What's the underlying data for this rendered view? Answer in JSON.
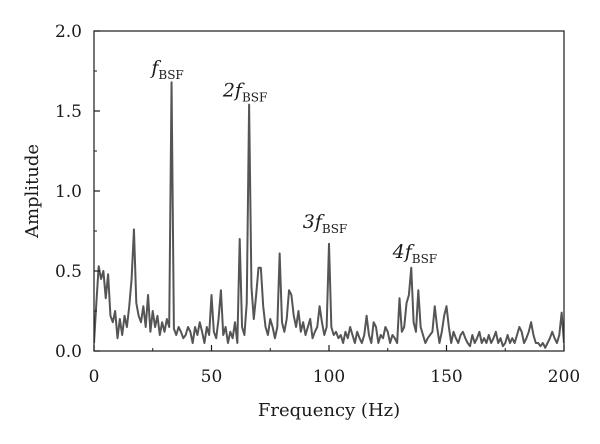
{
  "chart_data": {
    "type": "line",
    "title": "",
    "xlabel": "Frequency (Hz)",
    "ylabel": "Amplitude",
    "xlim": [
      0,
      200
    ],
    "ylim": [
      0,
      2.0
    ],
    "xticks": [
      0,
      50,
      100,
      150,
      200
    ],
    "yticks": [
      0.0,
      0.5,
      1.0,
      1.5,
      2.0
    ],
    "xtick_labels": [
      "0",
      "50",
      "100",
      "150",
      "200"
    ],
    "ytick_labels": [
      "0.0",
      "0.5",
      "1.0",
      "1.5",
      "2.0"
    ],
    "grid": false,
    "line_color": "#555555",
    "series": [
      {
        "x": [
          0,
          1,
          2,
          3,
          4,
          5,
          6,
          7,
          8,
          9,
          10,
          11,
          12,
          13,
          14,
          15,
          16,
          17,
          18,
          19,
          20,
          21,
          22,
          23,
          24,
          25,
          26,
          27,
          28,
          29,
          30,
          31,
          32,
          33,
          34,
          35,
          36,
          37,
          38,
          39,
          40,
          41,
          42,
          43,
          44,
          45,
          46,
          47,
          48,
          49,
          50,
          51,
          52,
          53,
          54,
          55,
          56,
          57,
          58,
          59,
          60,
          61,
          62,
          63,
          64,
          65,
          66,
          67,
          68,
          69,
          70,
          71,
          72,
          73,
          74,
          75,
          76,
          77,
          78,
          79,
          80,
          81,
          82,
          83,
          84,
          85,
          86,
          87,
          88,
          89,
          90,
          91,
          92,
          93,
          94,
          95,
          96,
          97,
          98,
          99,
          100,
          101,
          102,
          103,
          104,
          105,
          106,
          107,
          108,
          109,
          110,
          111,
          112,
          113,
          114,
          115,
          116,
          117,
          118,
          119,
          120,
          121,
          122,
          123,
          124,
          125,
          126,
          127,
          128,
          129,
          130,
          131,
          132,
          133,
          134,
          135,
          136,
          137,
          138,
          139,
          140,
          141,
          142,
          143,
          144,
          145,
          146,
          147,
          148,
          149,
          150,
          151,
          152,
          153,
          154,
          155,
          156,
          157,
          158,
          159,
          160,
          161,
          162,
          163,
          164,
          165,
          166,
          167,
          168,
          169,
          170,
          171,
          172,
          173,
          174,
          175,
          176,
          177,
          178,
          179,
          180,
          181,
          182,
          183,
          184,
          185,
          186,
          187,
          188,
          189,
          190,
          191,
          192,
          193,
          194,
          195,
          196,
          197,
          198,
          199,
          200
        ],
        "values": [
          0.05,
          0.3,
          0.53,
          0.45,
          0.5,
          0.33,
          0.48,
          0.22,
          0.18,
          0.25,
          0.08,
          0.2,
          0.1,
          0.22,
          0.15,
          0.28,
          0.45,
          0.76,
          0.3,
          0.22,
          0.18,
          0.28,
          0.15,
          0.35,
          0.12,
          0.25,
          0.15,
          0.22,
          0.1,
          0.18,
          0.12,
          0.2,
          0.15,
          1.68,
          0.14,
          0.1,
          0.15,
          0.12,
          0.08,
          0.1,
          0.15,
          0.12,
          0.05,
          0.15,
          0.1,
          0.18,
          0.12,
          0.05,
          0.15,
          0.1,
          0.35,
          0.12,
          0.08,
          0.2,
          0.38,
          0.1,
          0.15,
          0.05,
          0.12,
          0.08,
          0.18,
          0.05,
          0.7,
          0.15,
          0.1,
          0.3,
          1.54,
          0.4,
          0.2,
          0.35,
          0.52,
          0.52,
          0.28,
          0.15,
          0.1,
          0.2,
          0.15,
          0.08,
          0.15,
          0.61,
          0.18,
          0.12,
          0.2,
          0.38,
          0.35,
          0.22,
          0.15,
          0.25,
          0.12,
          0.18,
          0.1,
          0.15,
          0.2,
          0.08,
          0.12,
          0.15,
          0.28,
          0.18,
          0.1,
          0.15,
          0.67,
          0.15,
          0.1,
          0.12,
          0.08,
          0.1,
          0.05,
          0.12,
          0.08,
          0.15,
          0.1,
          0.05,
          0.12,
          0.08,
          0.05,
          0.1,
          0.22,
          0.1,
          0.05,
          0.18,
          0.15,
          0.05,
          0.1,
          0.08,
          0.15,
          0.12,
          0.05,
          0.1,
          0.08,
          0.05,
          0.33,
          0.12,
          0.15,
          0.3,
          0.35,
          0.52,
          0.18,
          0.12,
          0.38,
          0.15,
          0.1,
          0.05,
          0.08,
          0.1,
          0.12,
          0.28,
          0.15,
          0.05,
          0.12,
          0.22,
          0.28,
          0.15,
          0.05,
          0.12,
          0.08,
          0.05,
          0.1,
          0.12,
          0.08,
          0.05,
          0.03,
          0.1,
          0.05,
          0.08,
          0.12,
          0.05,
          0.08,
          0.05,
          0.1,
          0.05,
          0.08,
          0.12,
          0.05,
          0.08,
          0.03,
          0.05,
          0.1,
          0.05,
          0.08,
          0.05,
          0.1,
          0.15,
          0.12,
          0.05,
          0.08,
          0.12,
          0.18,
          0.1,
          0.05,
          0.05,
          0.03,
          0.05,
          0.02,
          0.05,
          0.08,
          0.12,
          0.08,
          0.05,
          0.1,
          0.24,
          0.05
        ]
      }
    ],
    "annotations": [
      {
        "base": "f",
        "sub": "BSF",
        "x": 33,
        "y": 1.68
      },
      {
        "base": "2f",
        "sub": "BSF",
        "x": 66,
        "y": 1.54
      },
      {
        "base": "3f",
        "sub": "BSF",
        "x": 100,
        "y": 0.67
      },
      {
        "base": "4f",
        "sub": "BSF",
        "x": 134,
        "y": 0.52
      }
    ]
  }
}
